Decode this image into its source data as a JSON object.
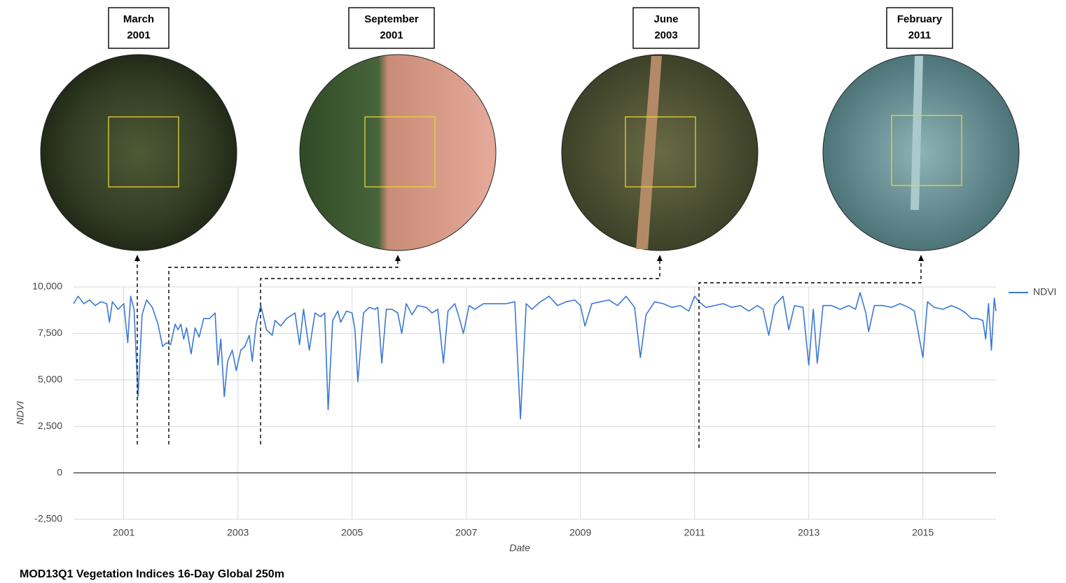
{
  "snapshots": [
    {
      "month": "March",
      "year": "2001"
    },
    {
      "month": "September",
      "year": "2001"
    },
    {
      "month": "June",
      "year": "2003"
    },
    {
      "month": "February",
      "year": "2011"
    }
  ],
  "chart_data": {
    "type": "line",
    "x_label": "Date",
    "y_label": "NDVI",
    "caption": "MOD13Q1 Vegetation Indices 16-Day Global 250m",
    "x": [
      2000.12,
      2000.2,
      2000.3,
      2000.4,
      2000.5,
      2000.6,
      2000.7,
      2000.75,
      2000.8,
      2000.9,
      2001.0,
      2001.07,
      2001.12,
      2001.18,
      2001.25,
      2001.32,
      2001.4,
      2001.5,
      2001.6,
      2001.68,
      2001.75,
      2001.82,
      2001.9,
      2001.95,
      2002.0,
      2002.05,
      2002.1,
      2002.18,
      2002.25,
      2002.32,
      2002.4,
      2002.5,
      2002.6,
      2002.65,
      2002.7,
      2002.76,
      2002.82,
      2002.9,
      2002.97,
      2003.05,
      2003.12,
      2003.2,
      2003.25,
      2003.32,
      2003.4,
      2003.5,
      2003.6,
      2003.65,
      2003.75,
      2003.85,
      2004.0,
      2004.08,
      2004.15,
      2004.25,
      2004.35,
      2004.45,
      2004.52,
      2004.58,
      2004.66,
      2004.75,
      2004.8,
      2004.9,
      2005.0,
      2005.05,
      2005.1,
      2005.2,
      2005.3,
      2005.4,
      2005.45,
      2005.52,
      2005.6,
      2005.7,
      2005.8,
      2005.87,
      2005.95,
      2006.05,
      2006.15,
      2006.3,
      2006.4,
      2006.5,
      2006.6,
      2006.68,
      2006.8,
      2006.88,
      2006.95,
      2007.05,
      2007.15,
      2007.3,
      2007.5,
      2007.7,
      2007.85,
      2007.95,
      2008.05,
      2008.15,
      2008.3,
      2008.45,
      2008.6,
      2008.75,
      2008.9,
      2009.0,
      2009.08,
      2009.2,
      2009.35,
      2009.5,
      2009.65,
      2009.8,
      2009.95,
      2010.05,
      2010.15,
      2010.3,
      2010.45,
      2010.6,
      2010.75,
      2010.9,
      2011.0,
      2011.08,
      2011.2,
      2011.35,
      2011.5,
      2011.65,
      2011.8,
      2011.95,
      2012.1,
      2012.2,
      2012.3,
      2012.4,
      2012.55,
      2012.65,
      2012.75,
      2012.9,
      2013.0,
      2013.08,
      2013.15,
      2013.25,
      2013.4,
      2013.55,
      2013.7,
      2013.82,
      2013.9,
      2014.0,
      2014.05,
      2014.15,
      2014.3,
      2014.45,
      2014.6,
      2014.75,
      2014.85,
      2015.0,
      2015.08,
      2015.2,
      2015.35,
      2015.5,
      2015.65,
      2015.75,
      2015.85,
      2015.95,
      2016.05,
      2016.1,
      2016.15,
      2016.2,
      2016.25,
      2016.28
    ],
    "series": [
      {
        "name": "NDVI",
        "color": "#3a78d6",
        "values": [
          9100,
          9500,
          9100,
          9300,
          9000,
          9200,
          9100,
          8100,
          9200,
          8800,
          9100,
          7000,
          9500,
          8800,
          4100,
          8500,
          9300,
          8900,
          8000,
          6800,
          7000,
          6900,
          8000,
          7700,
          8000,
          7200,
          7800,
          6400,
          7800,
          7300,
          8300,
          8300,
          8600,
          5800,
          7200,
          4100,
          6000,
          6600,
          5500,
          6600,
          6800,
          7400,
          6000,
          8000,
          9000,
          7700,
          7400,
          8200,
          7900,
          8300,
          8600,
          6900,
          8800,
          6600,
          8600,
          8400,
          8600,
          3400,
          8200,
          8700,
          8100,
          8700,
          8600,
          7700,
          4900,
          8600,
          8900,
          8800,
          8900,
          5900,
          8800,
          8800,
          8600,
          7500,
          9100,
          8500,
          9000,
          8900,
          8600,
          8800,
          5900,
          8700,
          9100,
          8300,
          7500,
          9000,
          8800,
          9100,
          9100,
          9100,
          9200,
          2900,
          9100,
          8800,
          9200,
          9500,
          9000,
          9200,
          9300,
          9000,
          7900,
          9100,
          9200,
          9300,
          9000,
          9500,
          8900,
          6200,
          8500,
          9200,
          9100,
          8900,
          9000,
          8700,
          9500,
          9200,
          8900,
          9000,
          9100,
          8900,
          9000,
          8700,
          9000,
          8800,
          7400,
          9000,
          9500,
          7700,
          9000,
          8900,
          5800,
          8800,
          5900,
          9000,
          9000,
          8800,
          9000,
          8800,
          9700,
          8600,
          7600,
          9000,
          9000,
          8900,
          9100,
          8900,
          8700,
          6200,
          9200,
          8900,
          8800,
          9000,
          8800,
          8600,
          8300,
          8300,
          8200,
          7200,
          9100,
          6600,
          9400,
          8700
        ]
      }
    ],
    "xlim": [
      2000.12,
      2016.28
    ],
    "ylim": [
      -2500,
      10000
    ],
    "xticks": [
      2001,
      2003,
      2005,
      2007,
      2009,
      2011,
      2013,
      2015
    ],
    "yticks": [
      {
        "value": 10000,
        "label": "10,000"
      },
      {
        "value": 7500,
        "label": "7,500"
      },
      {
        "value": 5000,
        "label": "5,000"
      },
      {
        "value": 2500,
        "label": "2,500"
      },
      0,
      {
        "value": -2500,
        "label": "-2,500"
      }
    ],
    "grid": true,
    "legend": "right"
  }
}
